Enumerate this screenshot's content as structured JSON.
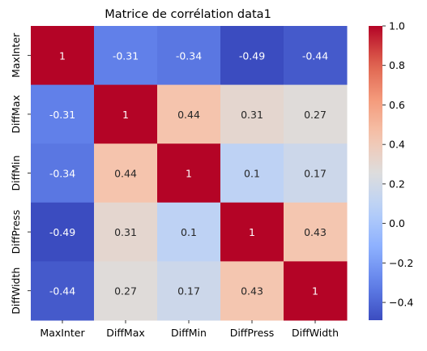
{
  "chart_data": {
    "type": "heatmap",
    "title": "Matrice de corrélation data1",
    "xlabel": "",
    "ylabel": "",
    "x_categories": [
      "MaxInter",
      "DiffMax",
      "DiffMin",
      "DiffPress",
      "DiffWidth"
    ],
    "y_categories": [
      "MaxInter",
      "DiffMax",
      "DiffMin",
      "DiffPress",
      "DiffWidth"
    ],
    "values": [
      [
        1,
        -0.31,
        -0.34,
        -0.49,
        -0.44
      ],
      [
        -0.31,
        1,
        0.44,
        0.31,
        0.27
      ],
      [
        -0.34,
        0.44,
        1,
        0.1,
        0.17
      ],
      [
        -0.49,
        0.31,
        0.1,
        1,
        0.43
      ],
      [
        -0.44,
        0.27,
        0.17,
        0.43,
        1
      ]
    ],
    "annotations": [
      [
        "1",
        "-0.31",
        "-0.34",
        "-0.49",
        "-0.44"
      ],
      [
        "-0.31",
        "1",
        "0.44",
        "0.31",
        "0.27"
      ],
      [
        "-0.34",
        "0.44",
        "1",
        "0.1",
        "0.17"
      ],
      [
        "-0.49",
        "0.31",
        "0.1",
        "1",
        "0.43"
      ],
      [
        "-0.44",
        "0.27",
        "0.17",
        "0.43",
        "1"
      ]
    ],
    "colormap": "coolwarm",
    "color_range": [
      -0.49,
      1.0
    ],
    "colorbar_ticks": [
      {
        "value": 1.0,
        "label": "1.0"
      },
      {
        "value": 0.8,
        "label": "0.8"
      },
      {
        "value": 0.6,
        "label": "0.6"
      },
      {
        "value": 0.4,
        "label": "0.4"
      },
      {
        "value": 0.2,
        "label": "0.2"
      },
      {
        "value": 0.0,
        "label": "0.0"
      },
      {
        "value": -0.2,
        "label": "−0.2"
      },
      {
        "value": -0.4,
        "label": "−0.4"
      }
    ],
    "grid": false,
    "legend": "colorbar-right"
  }
}
